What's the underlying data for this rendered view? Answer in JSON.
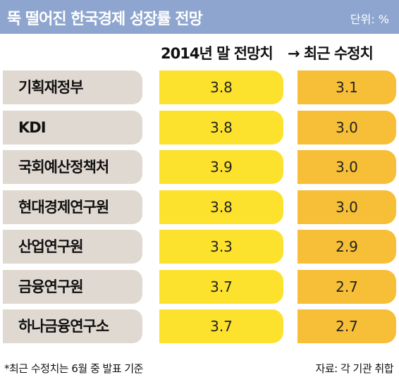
{
  "title": "뚝 떨어진 한국경제 성장률 전망",
  "unit": "단위: %",
  "header": {
    "col1": "2014년 말 전망치",
    "col2": "→ 최근 수정치"
  },
  "colors": {
    "title_bar": "#8ea6cf",
    "label_bg": "#e0d9d1",
    "col1_bg": "#fde22d",
    "col2_bg": "#f7be37"
  },
  "chart_data": {
    "type": "table",
    "columns": [
      "2014년 말 전망치",
      "→ 최근 수정치"
    ],
    "rows": [
      {
        "label": "기획재정부",
        "values": [
          "3.8",
          "3.1"
        ]
      },
      {
        "label": "KDI",
        "values": [
          "3.8",
          "3.0"
        ]
      },
      {
        "label": "국회예산정책처",
        "values": [
          "3.9",
          "3.0"
        ]
      },
      {
        "label": "현대경제연구원",
        "values": [
          "3.8",
          "3.0"
        ]
      },
      {
        "label": "산업연구원",
        "values": [
          "3.3",
          "2.9"
        ]
      },
      {
        "label": "금융연구원",
        "values": [
          "3.7",
          "2.7"
        ]
      },
      {
        "label": "하나금융연구소",
        "values": [
          "3.7",
          "2.7"
        ]
      }
    ]
  },
  "footnote": "*최근 수정치는 6월 중 발표 기준",
  "source": "자료: 각 기관 취합"
}
